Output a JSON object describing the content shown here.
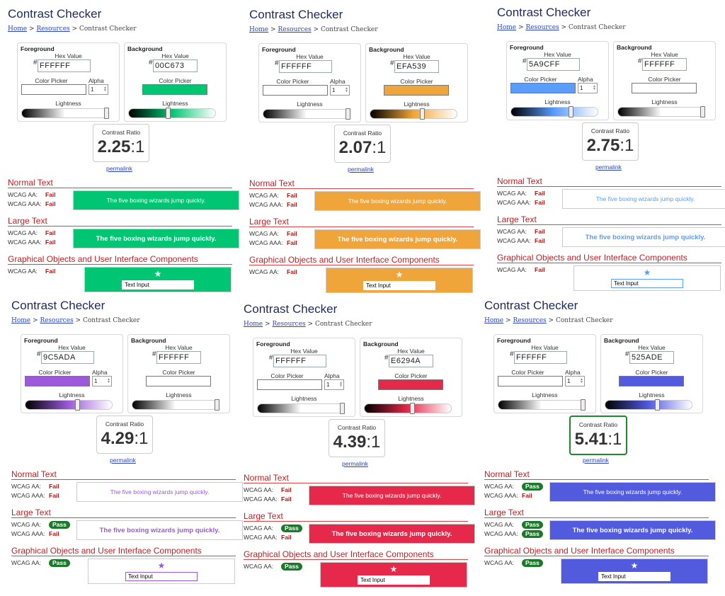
{
  "common": {
    "title": "Contrast Checker",
    "crumb_home": "Home",
    "crumb_sep1": ">",
    "crumb_resources": "Resources",
    "crumb_current": "> Contrast Checker",
    "foreground": "Foreground",
    "background": "Background",
    "hex_value": "Hex Value",
    "hash": "#",
    "color_picker": "Color Picker",
    "alpha": "Alpha",
    "alpha_value": "1",
    "lightness": "Lightness",
    "contrast_ratio": "Contrast Ratio",
    "ratio_suffix": ":1",
    "permalink": "permalink",
    "normal_text": "Normal Text",
    "large_text": "Large Text",
    "graphical": "Graphical Objects and User Interface Components",
    "wcag_aa": "WCAG AA:",
    "wcag_aaa": "WCAG AAA:",
    "sample": "The five boxing wizards jump quickly.",
    "text_input": "Text Input",
    "star": "★"
  },
  "panels": [
    {
      "fg": "FFFFFF",
      "bg": "00C673",
      "ratio": "2.25",
      "fg_light": 1.0,
      "bg_light": 0.45,
      "normal_aa": "Fail",
      "normal_aaa": "Fail",
      "large_aa": "Fail",
      "large_aaa": "Fail",
      "graphic_aa": "Fail"
    },
    {
      "fg": "FFFFFF",
      "bg": "EFA539",
      "ratio": "2.07",
      "fg_light": 1.0,
      "bg_light": 0.6,
      "normal_aa": "Fail",
      "normal_aaa": "Fail",
      "large_aa": "Fail",
      "large_aaa": "Fail",
      "graphic_aa": "Fail"
    },
    {
      "fg": "5A9CFF",
      "bg": "FFFFFF",
      "ratio": "2.75",
      "fg_light": 0.7,
      "bg_light": 1.0,
      "normal_aa": "Fail",
      "normal_aaa": "Fail",
      "large_aa": "Fail",
      "large_aaa": "Fail",
      "graphic_aa": "Fail"
    },
    {
      "fg": "9C5ADA",
      "bg": "FFFFFF",
      "ratio": "4.29",
      "fg_light": 0.6,
      "bg_light": 1.0,
      "normal_aa": "Fail",
      "normal_aaa": "Fail",
      "large_aa": "Pass",
      "large_aaa": "Fail",
      "graphic_aa": "Pass"
    },
    {
      "fg": "FFFFFF",
      "bg": "E6294A",
      "ratio": "4.39",
      "fg_light": 1.0,
      "bg_light": 0.55,
      "normal_aa": "Fail",
      "normal_aaa": "Fail",
      "large_aa": "Pass",
      "large_aaa": "Fail",
      "graphic_aa": "Pass"
    },
    {
      "fg": "FFFFFF",
      "bg": "525ADE",
      "ratio": "5.41",
      "fg_light": 1.0,
      "bg_light": 0.6,
      "normal_aa": "Pass",
      "normal_aaa": "Fail",
      "large_aa": "Pass",
      "large_aaa": "Pass",
      "graphic_aa": "Pass"
    }
  ]
}
